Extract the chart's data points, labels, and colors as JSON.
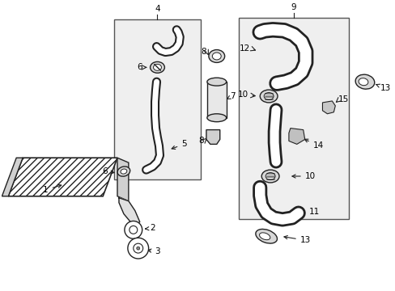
{
  "background_color": "#ffffff",
  "fig_width": 4.89,
  "fig_height": 3.6,
  "dpi": 100,
  "line_color": "#222222",
  "box_fill": "#efefef",
  "box_edge": "#555555"
}
